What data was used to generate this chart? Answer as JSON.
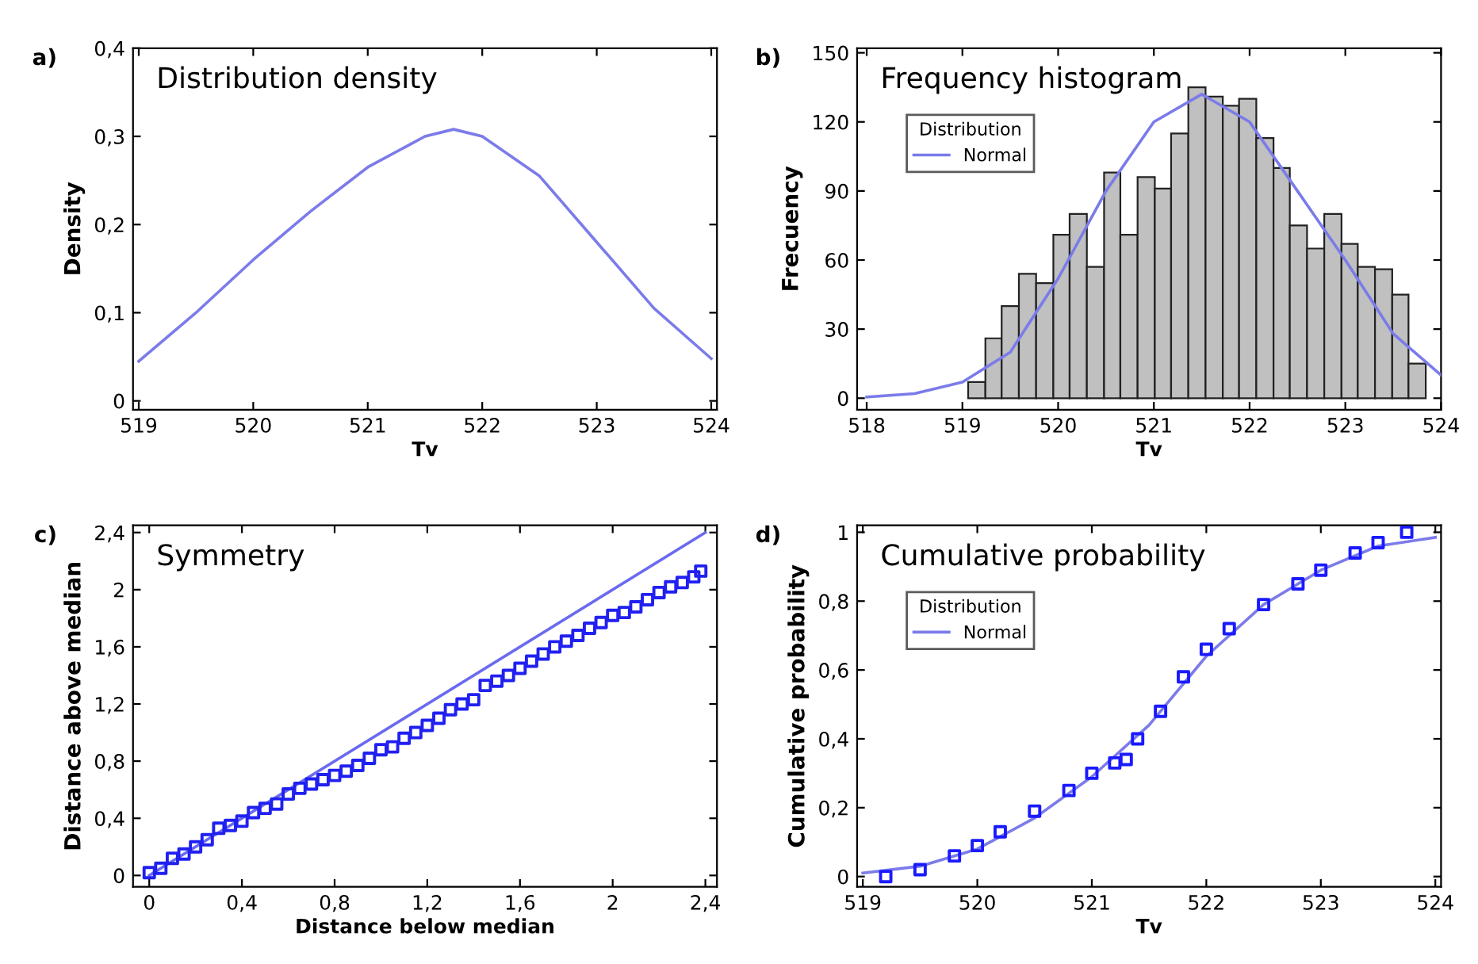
{
  "chart_data": [
    {
      "type": "line",
      "title": "Distribution density",
      "xlabel": "Tv",
      "ylabel": "Density",
      "annotations": [
        "a)"
      ],
      "grid": false,
      "legend": false,
      "xlim": [
        518.95,
        524.05
      ],
      "xticks": [
        519,
        520,
        521,
        522,
        523,
        524
      ],
      "ylim": [
        -0.01,
        0.4
      ],
      "yticks": [
        0,
        {
          "value": 0.1,
          "label": "0,1"
        },
        {
          "value": 0.2,
          "label": "0,2"
        },
        {
          "value": 0.3,
          "label": "0,3"
        },
        {
          "value": 0.4,
          "label": "0,4"
        }
      ],
      "series": [
        {
          "type": "line",
          "color": "#7b7bea",
          "marker": "none",
          "line_style": "solid",
          "x": [
            519,
            519.5,
            520,
            520.5,
            521,
            521.5,
            521.75,
            522,
            522.5,
            523,
            523.5,
            524
          ],
          "values": [
            0.045,
            0.1,
            0.16,
            0.215,
            0.265,
            0.3,
            0.308,
            0.3,
            0.255,
            0.18,
            0.105,
            0.048
          ]
        }
      ]
    },
    {
      "type": "histogram",
      "title": "Frequency histogram",
      "xlabel": "Tv",
      "ylabel": "Frecuency",
      "annotations": [
        "b)"
      ],
      "grid": false,
      "legend": "top left",
      "legend_title": "Distribution",
      "color": "#c0c0c0",
      "xlim": [
        517.9,
        524
      ],
      "xticks": [
        518,
        519,
        520,
        521,
        522,
        523,
        524
      ],
      "ylim": [
        -5,
        152
      ],
      "yticks": [
        0,
        30,
        60,
        90,
        120,
        150
      ],
      "bins": [
        519.06,
        519.24,
        519.41,
        519.59,
        519.77,
        519.95,
        520.12,
        520.3,
        520.48,
        520.65,
        520.83,
        521.01,
        521.18,
        521.36,
        521.54,
        521.72,
        521.89,
        522.07,
        522.25,
        522.42,
        522.6,
        522.78,
        522.96,
        523.13,
        523.31,
        523.49,
        523.66,
        523.84
      ],
      "values": [
        7,
        26,
        40,
        54,
        50,
        71,
        80,
        57,
        98,
        71,
        96,
        91,
        115,
        135,
        131,
        127,
        130,
        113,
        100,
        75,
        65,
        80,
        67,
        57,
        56,
        45,
        15
      ],
      "series": [
        {
          "type": "line",
          "name": "Normal",
          "color": "#7b7bea",
          "marker": "none",
          "line_style": "solid",
          "x": [
            518,
            518.5,
            519,
            519.5,
            520,
            520.5,
            521,
            521.5,
            522,
            522.5,
            523,
            523.5,
            524
          ],
          "values": [
            0.5,
            2,
            7,
            20,
            52,
            90,
            120,
            132,
            120,
            90,
            60,
            28,
            10
          ]
        }
      ]
    },
    {
      "type": "scatter",
      "title": "Symmetry",
      "xlabel": "Distance below median",
      "ylabel": "Distance above median",
      "annotations": [
        "c)"
      ],
      "grid": false,
      "legend": false,
      "xlim": [
        -0.07,
        2.45
      ],
      "xticks": [
        0,
        {
          "value": 0.4,
          "label": "0,4"
        },
        {
          "value": 0.8,
          "label": "0,8"
        },
        {
          "value": 1.2,
          "label": "1,2"
        },
        {
          "value": 1.6,
          "label": "1,6"
        },
        2,
        {
          "value": 2.4,
          "label": "2,4"
        }
      ],
      "ylim": [
        -0.08,
        2.45
      ],
      "yticks": [
        0,
        {
          "value": 0.4,
          "label": "0,4"
        },
        {
          "value": 0.8,
          "label": "0,8"
        },
        {
          "value": 1.2,
          "label": "1,2"
        },
        {
          "value": 1.6,
          "label": "1,6"
        },
        2,
        {
          "value": 2.4,
          "label": "2,4"
        }
      ],
      "series": [
        {
          "type": "line",
          "color": "#6a6af0",
          "marker": "none",
          "line_style": "solid",
          "x": [
            0,
            2.4
          ],
          "values": [
            0,
            2.4
          ]
        },
        {
          "type": "scatter",
          "color": "#2020f0",
          "marker": "square",
          "x": [
            0,
            0.05,
            0.1,
            0.15,
            0.2,
            0.25,
            0.3,
            0.35,
            0.4,
            0.45,
            0.5,
            0.55,
            0.6,
            0.65,
            0.7,
            0.75,
            0.8,
            0.85,
            0.9,
            0.95,
            1.0,
            1.05,
            1.1,
            1.15,
            1.2,
            1.25,
            1.3,
            1.35,
            1.4,
            1.45,
            1.5,
            1.55,
            1.6,
            1.65,
            1.7,
            1.75,
            1.8,
            1.85,
            1.9,
            1.95,
            2.0,
            2.05,
            2.1,
            2.15,
            2.2,
            2.25,
            2.3,
            2.35,
            2.38
          ],
          "values": [
            0.02,
            0.05,
            0.12,
            0.15,
            0.2,
            0.25,
            0.33,
            0.35,
            0.38,
            0.44,
            0.47,
            0.5,
            0.57,
            0.61,
            0.64,
            0.67,
            0.7,
            0.73,
            0.77,
            0.82,
            0.88,
            0.9,
            0.96,
            1.0,
            1.05,
            1.1,
            1.16,
            1.2,
            1.23,
            1.33,
            1.36,
            1.4,
            1.45,
            1.5,
            1.55,
            1.6,
            1.64,
            1.68,
            1.73,
            1.77,
            1.82,
            1.84,
            1.88,
            1.93,
            1.98,
            2.02,
            2.05,
            2.09,
            2.13
          ]
        }
      ]
    },
    {
      "type": "scatter",
      "title": "Cumulative probability",
      "xlabel": "Tv",
      "ylabel": "Cumulative probability",
      "annotations": [
        "d)"
      ],
      "grid": false,
      "legend": "top left",
      "legend_title": "Distribution",
      "xlim": [
        518.95,
        524.05
      ],
      "xticks": [
        519,
        520,
        521,
        522,
        523,
        524
      ],
      "ylim": [
        -0.03,
        1.02
      ],
      "yticks": [
        0,
        {
          "value": 0.2,
          "label": "0,2"
        },
        {
          "value": 0.4,
          "label": "0,4"
        },
        {
          "value": 0.6,
          "label": "0,6"
        },
        {
          "value": 0.8,
          "label": "0,8"
        },
        1
      ],
      "series": [
        {
          "type": "scatter",
          "color": "#1a1aff",
          "marker": "square",
          "x": [
            519.2,
            519.5,
            519.8,
            520.0,
            520.2,
            520.5,
            520.8,
            521.0,
            521.2,
            521.3,
            521.4,
            521.6,
            521.8,
            522.0,
            522.2,
            522.5,
            522.8,
            523.0,
            523.3,
            523.5,
            523.75
          ],
          "values": [
            0,
            0.02,
            0.06,
            0.09,
            0.13,
            0.19,
            0.25,
            0.3,
            0.33,
            0.34,
            0.4,
            0.48,
            0.58,
            0.66,
            0.72,
            0.79,
            0.85,
            0.89,
            0.94,
            0.97,
            1.0
          ]
        },
        {
          "type": "line",
          "name": "Normal",
          "color": "#7b7bea",
          "marker": "none",
          "line_style": "solid",
          "x": [
            519,
            519.5,
            520,
            520.5,
            521,
            521.5,
            522,
            522.5,
            523,
            523.5,
            524
          ],
          "values": [
            0.01,
            0.03,
            0.08,
            0.17,
            0.29,
            0.44,
            0.64,
            0.79,
            0.89,
            0.96,
            0.985
          ]
        }
      ]
    }
  ]
}
